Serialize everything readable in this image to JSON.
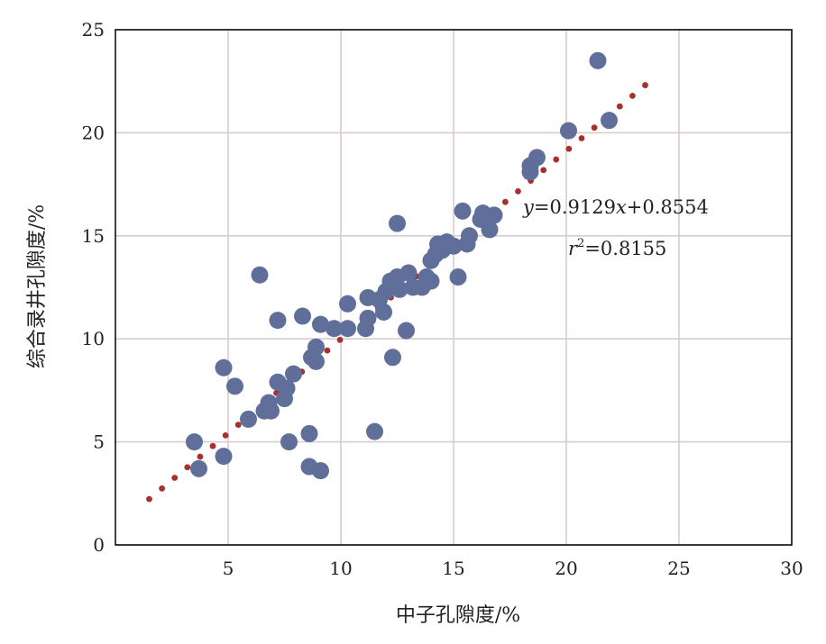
{
  "chart_data": {
    "type": "scatter",
    "xlabel": "中子孔隙度/%",
    "ylabel": "综合录井孔隙度/%",
    "xlim": [
      0,
      30
    ],
    "ylim": [
      0,
      25
    ],
    "xticks": [
      "5",
      "10",
      "15",
      "20",
      "25",
      "30"
    ],
    "yticks": [
      "0",
      "5",
      "10",
      "15",
      "20",
      "25"
    ],
    "grid": true,
    "colors": {
      "points": "#5f6f9a",
      "fit": "#a8302c",
      "grid": "#d8cccc",
      "axis": "#000000"
    },
    "points": [
      [
        3.5,
        5.0
      ],
      [
        3.7,
        3.7
      ],
      [
        4.8,
        8.6
      ],
      [
        4.8,
        4.3
      ],
      [
        5.3,
        7.7
      ],
      [
        5.9,
        6.1
      ],
      [
        6.4,
        13.1
      ],
      [
        6.6,
        6.5
      ],
      [
        6.8,
        6.9
      ],
      [
        6.9,
        6.5
      ],
      [
        7.2,
        10.9
      ],
      [
        7.2,
        7.9
      ],
      [
        7.5,
        7.1
      ],
      [
        7.6,
        7.6
      ],
      [
        7.7,
        5.0
      ],
      [
        7.9,
        8.3
      ],
      [
        8.3,
        11.1
      ],
      [
        8.6,
        5.4
      ],
      [
        8.6,
        3.8
      ],
      [
        8.7,
        9.1
      ],
      [
        8.9,
        9.6
      ],
      [
        8.9,
        8.9
      ],
      [
        9.1,
        10.7
      ],
      [
        9.1,
        3.6
      ],
      [
        9.7,
        10.5
      ],
      [
        10.3,
        10.5
      ],
      [
        10.3,
        11.7
      ],
      [
        11.1,
        10.5
      ],
      [
        11.2,
        12.0
      ],
      [
        11.2,
        11.0
      ],
      [
        11.5,
        5.5
      ],
      [
        11.7,
        11.9
      ],
      [
        11.9,
        11.3
      ],
      [
        12.0,
        12.3
      ],
      [
        12.2,
        12.8
      ],
      [
        12.3,
        9.1
      ],
      [
        12.5,
        15.6
      ],
      [
        12.5,
        13.0
      ],
      [
        12.6,
        12.4
      ],
      [
        12.9,
        10.4
      ],
      [
        13.0,
        13.2
      ],
      [
        13.2,
        12.5
      ],
      [
        13.6,
        12.5
      ],
      [
        13.8,
        13.0
      ],
      [
        14.0,
        12.8
      ],
      [
        14.0,
        13.8
      ],
      [
        14.2,
        14.1
      ],
      [
        14.3,
        14.6
      ],
      [
        14.5,
        14.3
      ],
      [
        14.7,
        14.7
      ],
      [
        15.0,
        14.5
      ],
      [
        15.2,
        13.0
      ],
      [
        15.4,
        16.2
      ],
      [
        15.6,
        14.6
      ],
      [
        15.7,
        15.0
      ],
      [
        16.2,
        15.8
      ],
      [
        16.3,
        16.1
      ],
      [
        16.6,
        15.3
      ],
      [
        16.8,
        16.0
      ],
      [
        18.4,
        18.1
      ],
      [
        18.4,
        18.4
      ],
      [
        18.7,
        18.8
      ],
      [
        20.1,
        20.1
      ],
      [
        21.4,
        23.5
      ],
      [
        21.9,
        20.6
      ]
    ],
    "fit": {
      "slope": 0.9129,
      "intercept": 0.8554,
      "x_range": [
        1.5,
        23.5
      ]
    },
    "annotations": {
      "eq_y": "y",
      "eq_mid": "=0.9129",
      "eq_x": "x",
      "eq_tail": "+0.8554",
      "r_r": "r",
      "r_sup": "2",
      "r_tail": "=0.8155"
    }
  }
}
